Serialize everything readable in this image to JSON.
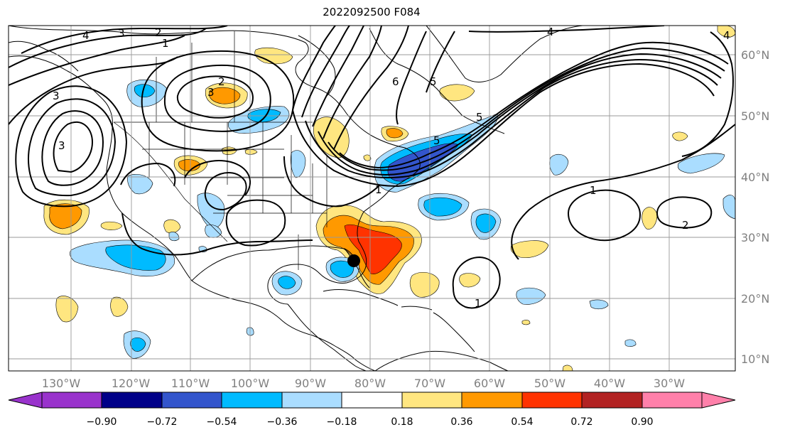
{
  "title": "2022092500 F084",
  "longitude_labels": [
    "130°W",
    "120°W",
    "110°W",
    "100°W",
    "90°W",
    "80°W",
    "70°W",
    "60°W",
    "50°W",
    "40°W",
    "30°W"
  ],
  "latitude_labels": [
    "60°N",
    "50°N",
    "40°N",
    "30°N",
    "20°N",
    "10°N"
  ],
  "colorbar": {
    "ticks": [
      "−0.90",
      "−0.72",
      "−0.54",
      "−0.36",
      "−0.18",
      "0.18",
      "0.36",
      "0.54",
      "0.72",
      "0.90"
    ],
    "colors": [
      "#9933cc",
      "#000088",
      "#3355cc",
      "#00bbff",
      "#aaddff",
      "#ffffff",
      "#ffe680",
      "#ff9900",
      "#ff3300",
      "#b22222",
      "#ff80aa"
    ]
  },
  "contour_labels": [
    "4",
    "3",
    "2",
    "1",
    "3",
    "2",
    "3",
    "1",
    "6",
    "5",
    "4",
    "5",
    "5",
    "4",
    "1",
    "2",
    "1",
    "3"
  ],
  "marker": "storm-center-dot"
}
